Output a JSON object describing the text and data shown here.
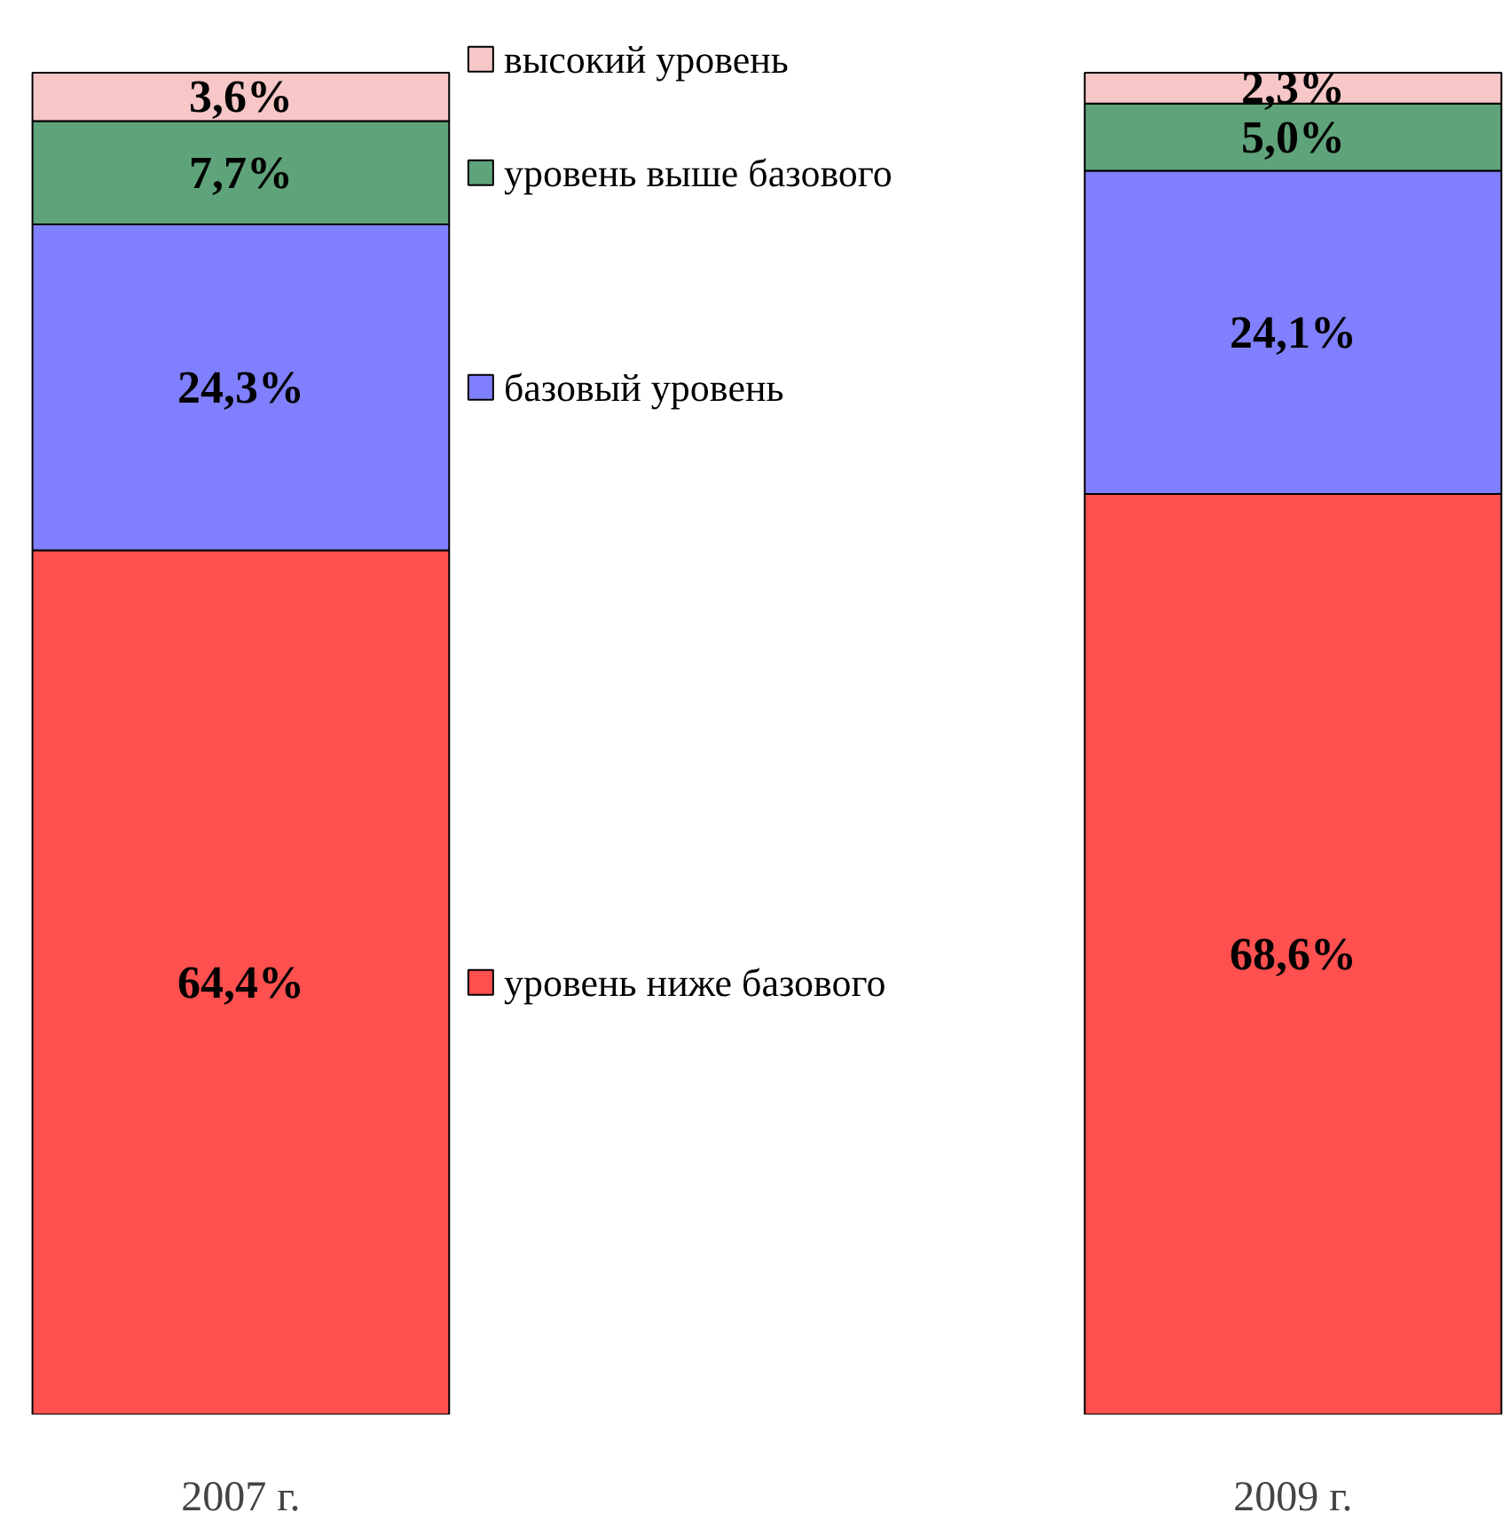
{
  "chart_data": {
    "type": "bar",
    "stacked": true,
    "categories": [
      "2007 г.",
      "2009 г."
    ],
    "series": [
      {
        "name": "уровень ниже базового",
        "color": "#ff5050",
        "values": [
          64.4,
          68.6
        ],
        "value_labels": [
          "64,4%",
          "68,6%"
        ]
      },
      {
        "name": "базовый уровень",
        "color": "#8080ff",
        "values": [
          24.3,
          24.1
        ],
        "value_labels": [
          "24,3%",
          "24,1%"
        ]
      },
      {
        "name": "уровень выше базового",
        "color": "#5fa37a",
        "values": [
          7.7,
          5.0
        ],
        "value_labels": [
          "7,7%",
          "5,0%"
        ]
      },
      {
        "name": "высокий уровень",
        "color": "#f7c6c6",
        "values": [
          3.6,
          2.3
        ],
        "value_labels": [
          "3,6%",
          "2,3%"
        ]
      }
    ],
    "legend": "center",
    "grid": false
  }
}
